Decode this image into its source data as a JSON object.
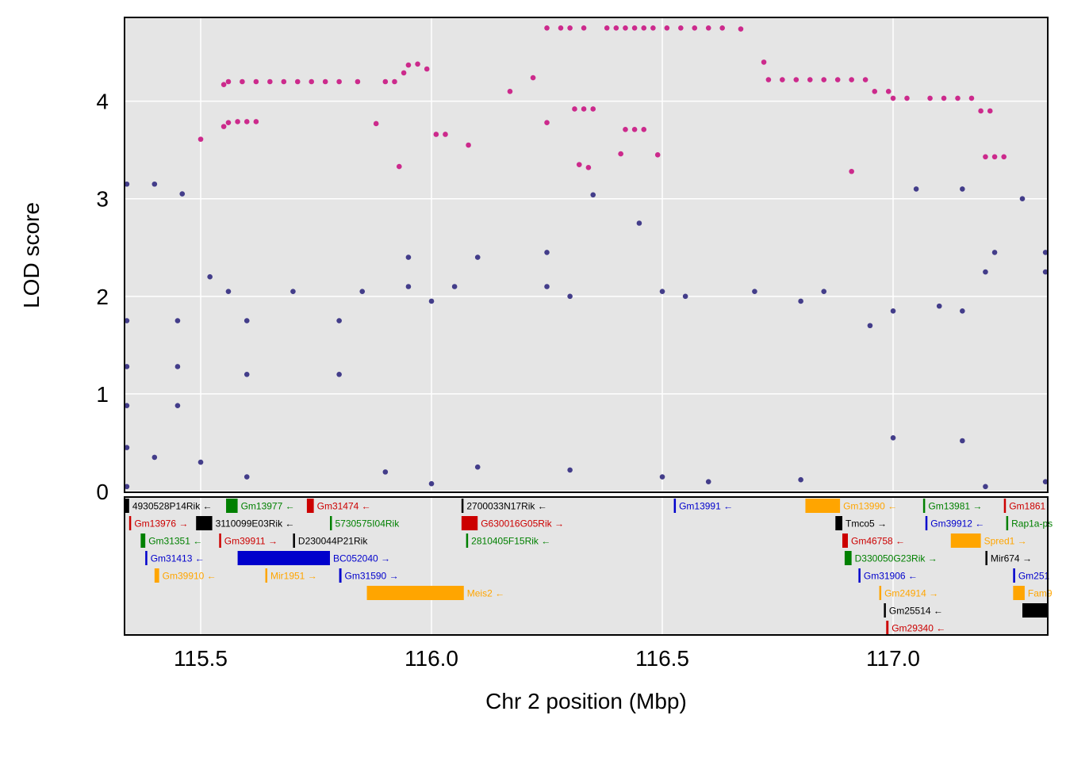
{
  "chart_data": {
    "type": "scatter",
    "title": "",
    "xlabel": "Chr 2 position (Mbp)",
    "ylabel": "LOD score",
    "xlim": [
      115.335,
      117.335
    ],
    "ylim": [
      0,
      4.85
    ],
    "x_ticks": [
      "115.5",
      "116.0",
      "116.5",
      "117.0"
    ],
    "x_tick_values": [
      115.5,
      116.0,
      116.5,
      117.0
    ],
    "y_ticks": [
      "0",
      "1",
      "2",
      "3",
      "4"
    ],
    "y_tick_values": [
      0,
      1,
      2,
      3,
      4
    ],
    "grid": true,
    "colors": {
      "panel_bg": "#e5e5e5",
      "grid": "#ffffff",
      "highlight_series": "#cc2a8c",
      "other_series": "#433d8a"
    },
    "series": [
      {
        "color": "#cc2a8c",
        "points": [
          [
            115.5,
            3.61
          ],
          [
            115.55,
            3.74
          ],
          [
            115.56,
            3.78
          ],
          [
            115.58,
            3.79
          ],
          [
            115.6,
            3.79
          ],
          [
            115.62,
            3.79
          ],
          [
            115.55,
            4.17
          ],
          [
            115.56,
            4.2
          ],
          [
            115.59,
            4.2
          ],
          [
            115.62,
            4.2
          ],
          [
            115.65,
            4.2
          ],
          [
            115.68,
            4.2
          ],
          [
            115.71,
            4.2
          ],
          [
            115.74,
            4.2
          ],
          [
            115.77,
            4.2
          ],
          [
            115.8,
            4.2
          ],
          [
            115.84,
            4.2
          ],
          [
            115.88,
            3.77
          ],
          [
            115.9,
            4.2
          ],
          [
            115.92,
            4.2
          ],
          [
            115.94,
            4.29
          ],
          [
            115.95,
            4.37
          ],
          [
            115.97,
            4.38
          ],
          [
            115.99,
            4.33
          ],
          [
            115.93,
            3.33
          ],
          [
            116.01,
            3.66
          ],
          [
            116.03,
            3.66
          ],
          [
            116.08,
            3.55
          ],
          [
            116.17,
            4.1
          ],
          [
            116.22,
            4.24
          ],
          [
            116.25,
            3.78
          ],
          [
            116.25,
            4.75
          ],
          [
            116.28,
            4.75
          ],
          [
            116.3,
            4.75
          ],
          [
            116.33,
            4.75
          ],
          [
            116.31,
            3.92
          ],
          [
            116.33,
            3.92
          ],
          [
            116.35,
            3.92
          ],
          [
            116.32,
            3.35
          ],
          [
            116.34,
            3.32
          ],
          [
            116.38,
            4.75
          ],
          [
            116.4,
            4.75
          ],
          [
            116.42,
            4.75
          ],
          [
            116.44,
            4.75
          ],
          [
            116.46,
            4.75
          ],
          [
            116.48,
            4.75
          ],
          [
            116.41,
            3.46
          ],
          [
            116.42,
            3.71
          ],
          [
            116.44,
            3.71
          ],
          [
            116.46,
            3.71
          ],
          [
            116.49,
            3.45
          ],
          [
            116.51,
            4.75
          ],
          [
            116.54,
            4.75
          ],
          [
            116.57,
            4.75
          ],
          [
            116.6,
            4.75
          ],
          [
            116.63,
            4.75
          ],
          [
            116.67,
            4.74
          ],
          [
            116.72,
            4.4
          ],
          [
            116.73,
            4.22
          ],
          [
            116.76,
            4.22
          ],
          [
            116.79,
            4.22
          ],
          [
            116.82,
            4.22
          ],
          [
            116.85,
            4.22
          ],
          [
            116.88,
            4.22
          ],
          [
            116.91,
            4.22
          ],
          [
            116.94,
            4.22
          ],
          [
            116.96,
            4.1
          ],
          [
            116.99,
            4.1
          ],
          [
            117.0,
            4.03
          ],
          [
            117.03,
            4.03
          ],
          [
            116.91,
            3.28
          ],
          [
            117.08,
            4.03
          ],
          [
            117.11,
            4.03
          ],
          [
            117.14,
            4.03
          ],
          [
            117.17,
            4.03
          ],
          [
            117.19,
            3.9
          ],
          [
            117.21,
            3.9
          ],
          [
            117.2,
            3.43
          ],
          [
            117.22,
            3.43
          ],
          [
            117.24,
            3.43
          ]
        ]
      },
      {
        "color": "#433d8a",
        "points": [
          [
            115.34,
            3.15
          ],
          [
            115.4,
            3.15
          ],
          [
            115.46,
            3.05
          ],
          [
            115.52,
            2.2
          ],
          [
            115.56,
            2.05
          ],
          [
            115.7,
            2.05
          ],
          [
            115.85,
            2.05
          ],
          [
            115.95,
            2.1
          ],
          [
            116.05,
            2.1
          ],
          [
            116.25,
            2.1
          ],
          [
            116.5,
            2.05
          ],
          [
            116.7,
            2.05
          ],
          [
            116.85,
            2.05
          ],
          [
            117.0,
            1.85
          ],
          [
            117.15,
            1.85
          ],
          [
            117.2,
            2.25
          ],
          [
            117.33,
            2.25
          ],
          [
            117.22,
            2.45
          ],
          [
            117.33,
            2.45
          ],
          [
            115.34,
            1.75
          ],
          [
            115.45,
            1.75
          ],
          [
            115.6,
            1.75
          ],
          [
            115.8,
            1.75
          ],
          [
            116.0,
            1.95
          ],
          [
            116.3,
            2.0
          ],
          [
            116.55,
            2.0
          ],
          [
            116.8,
            1.95
          ],
          [
            116.95,
            1.7
          ],
          [
            117.1,
            1.9
          ],
          [
            115.34,
            1.28
          ],
          [
            115.45,
            1.28
          ],
          [
            115.6,
            1.2
          ],
          [
            115.8,
            1.2
          ],
          [
            115.95,
            2.4
          ],
          [
            116.1,
            2.4
          ],
          [
            116.25,
            2.45
          ],
          [
            116.35,
            3.04
          ],
          [
            116.45,
            2.75
          ],
          [
            117.05,
            3.1
          ],
          [
            117.15,
            3.1
          ],
          [
            117.28,
            3.0
          ],
          [
            115.34,
            0.88
          ],
          [
            115.45,
            0.88
          ],
          [
            115.34,
            0.45
          ],
          [
            115.4,
            0.35
          ],
          [
            115.5,
            0.3
          ],
          [
            115.6,
            0.15
          ],
          [
            115.9,
            0.2
          ],
          [
            116.1,
            0.25
          ],
          [
            116.3,
            0.22
          ],
          [
            116.5,
            0.15
          ],
          [
            116.8,
            0.12
          ],
          [
            117.0,
            0.55
          ],
          [
            117.15,
            0.52
          ],
          [
            117.33,
            0.1
          ],
          [
            115.34,
            0.05
          ],
          [
            116.0,
            0.08
          ],
          [
            116.6,
            0.1
          ],
          [
            117.2,
            0.05
          ]
        ]
      }
    ],
    "genes": [
      {
        "name": "4930528P14Rik",
        "dir": "←",
        "start": 115.335,
        "end": 115.345,
        "row": 0,
        "color": "#000000"
      },
      {
        "name": "Gm13977",
        "dir": "←",
        "start": 115.555,
        "end": 115.58,
        "row": 0,
        "color": "#008000"
      },
      {
        "name": "Gm31474",
        "dir": "←",
        "start": 115.73,
        "end": 115.745,
        "row": 0,
        "color": "#cc0000"
      },
      {
        "name": "2700033N17Rik",
        "dir": "←",
        "start": 116.065,
        "end": 116.068,
        "row": 0,
        "color": "#000000"
      },
      {
        "name": "Gm13991",
        "dir": "←",
        "start": 116.525,
        "end": 116.528,
        "row": 0,
        "color": "#0000cc"
      },
      {
        "name": "Gm13990",
        "dir": "←",
        "start": 116.81,
        "end": 116.885,
        "row": 0,
        "color": "#ffa500"
      },
      {
        "name": "Gm13981",
        "dir": "→",
        "start": 117.065,
        "end": 117.068,
        "row": 0,
        "color": "#008000"
      },
      {
        "name": "Gm1861",
        "dir": "",
        "start": 117.24,
        "end": 117.243,
        "row": 0,
        "color": "#cc0000"
      },
      {
        "name": "Gm13976",
        "dir": "→",
        "start": 115.345,
        "end": 115.348,
        "row": 1,
        "color": "#cc0000"
      },
      {
        "name": "3110099E03Rik",
        "dir": "←",
        "start": 115.49,
        "end": 115.525,
        "row": 1,
        "color": "#000000"
      },
      {
        "name": "5730575I04Rik",
        "dir": "",
        "start": 115.78,
        "end": 115.783,
        "row": 1,
        "color": "#008000"
      },
      {
        "name": "G630016G05Rik",
        "dir": "→",
        "start": 116.065,
        "end": 116.1,
        "row": 1,
        "color": "#cc0000"
      },
      {
        "name": "Tmco5",
        "dir": "→",
        "start": 116.875,
        "end": 116.89,
        "row": 1,
        "color": "#000000"
      },
      {
        "name": "Gm39912",
        "dir": "←",
        "start": 117.07,
        "end": 117.073,
        "row": 1,
        "color": "#0000cc"
      },
      {
        "name": "Rap1a-ps",
        "dir": "",
        "start": 117.245,
        "end": 117.248,
        "row": 1,
        "color": "#008000"
      },
      {
        "name": "Gm31351",
        "dir": "←",
        "start": 115.37,
        "end": 115.38,
        "row": 2,
        "color": "#008000"
      },
      {
        "name": "Gm39911",
        "dir": "→",
        "start": 115.54,
        "end": 115.543,
        "row": 2,
        "color": "#cc0000"
      },
      {
        "name": "D230044P21Rik",
        "dir": "",
        "start": 115.7,
        "end": 115.703,
        "row": 2,
        "color": "#000000"
      },
      {
        "name": "2810405F15Rik",
        "dir": "←",
        "start": 116.075,
        "end": 116.078,
        "row": 2,
        "color": "#008000"
      },
      {
        "name": "Gm46758",
        "dir": "←",
        "start": 116.89,
        "end": 116.902,
        "row": 2,
        "color": "#cc0000"
      },
      {
        "name": "Spred1",
        "dir": "→",
        "start": 117.125,
        "end": 117.19,
        "row": 2,
        "color": "#ffa500"
      },
      {
        "name": "Gm31413",
        "dir": "←",
        "start": 115.38,
        "end": 115.383,
        "row": 3,
        "color": "#0000cc"
      },
      {
        "name": "BC052040",
        "dir": "→",
        "start": 115.58,
        "end": 115.78,
        "row": 3,
        "color": "#0000cc"
      },
      {
        "name": "D330050G23Rik",
        "dir": "→",
        "start": 116.895,
        "end": 116.91,
        "row": 3,
        "color": "#008000"
      },
      {
        "name": "Mir674",
        "dir": "→",
        "start": 117.2,
        "end": 117.203,
        "row": 3,
        "color": "#000000"
      },
      {
        "name": "Gm39910",
        "dir": "←",
        "start": 115.4,
        "end": 115.41,
        "row": 4,
        "color": "#ffa500"
      },
      {
        "name": "Mir1951",
        "dir": "→",
        "start": 115.64,
        "end": 115.643,
        "row": 4,
        "color": "#ffa500"
      },
      {
        "name": "Gm31590",
        "dir": "→",
        "start": 115.8,
        "end": 115.805,
        "row": 4,
        "color": "#0000cc"
      },
      {
        "name": "Gm31906",
        "dir": "←",
        "start": 116.925,
        "end": 116.928,
        "row": 4,
        "color": "#0000cc"
      },
      {
        "name": "Gm251",
        "dir": "",
        "start": 117.26,
        "end": 117.263,
        "row": 4,
        "color": "#0000cc"
      },
      {
        "name": "Meis2",
        "dir": "←",
        "start": 115.86,
        "end": 116.07,
        "row": 5,
        "color": "#ffa500"
      },
      {
        "name": "Gm24914",
        "dir": "→",
        "start": 116.97,
        "end": 116.973,
        "row": 5,
        "color": "#ffa500"
      },
      {
        "name": "Fam9",
        "dir": "",
        "start": 117.26,
        "end": 117.285,
        "row": 5,
        "color": "#ffa500"
      },
      {
        "name": "Gm25514",
        "dir": "←",
        "start": 116.98,
        "end": 116.983,
        "row": 6,
        "color": "#000000"
      },
      {
        "name": "",
        "dir": "",
        "start": 117.28,
        "end": 117.335,
        "row": 6,
        "color": "#000000"
      },
      {
        "name": "Gm29340",
        "dir": "←",
        "start": 116.985,
        "end": 116.99,
        "row": 7,
        "color": "#cc0000"
      }
    ]
  }
}
